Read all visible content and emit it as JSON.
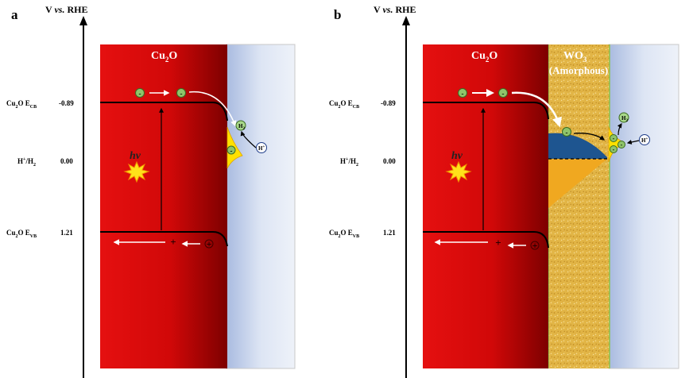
{
  "panels": [
    {
      "letter": "a",
      "axis_title": {
        "v": "V",
        "vs": "vs.",
        "ref": "RHE"
      },
      "levels": [
        {
          "label": "Cu",
          "sub": "2",
          "rest": "O  E",
          "sub2": "CB",
          "value": "-0.89"
        },
        {
          "label": "H",
          "sup": "+",
          "rest": "/H",
          "sub2": "2",
          "value": "0.00"
        },
        {
          "label": "Cu",
          "sub": "2",
          "rest": "O  E",
          "sub2": "VB",
          "value": "1.21"
        }
      ],
      "block_label": {
        "main": "Cu",
        "sub": "2",
        "rest": "O"
      },
      "hv": "hv",
      "electron": "-",
      "hole": "+",
      "proton": {
        "main": "H",
        "sup": "+"
      },
      "hydrogen": {
        "main": "H",
        "sub": "2"
      }
    },
    {
      "letter": "b",
      "axis_title": {
        "v": "V",
        "vs": "vs.",
        "ref": "RHE"
      },
      "levels": [
        {
          "label": "Cu",
          "sub": "2",
          "rest": "O  E",
          "sub2": "CB",
          "value": "-0.89"
        },
        {
          "label": "H",
          "sup": "+",
          "rest": "/H",
          "sub2": "2",
          "value": "0.00"
        },
        {
          "label": "Cu",
          "sub": "2",
          "rest": "O  E",
          "sub2": "VB",
          "value": "1.21"
        }
      ],
      "block_label": {
        "main": "Cu",
        "sub": "2",
        "rest": "O"
      },
      "wo3_label": {
        "main": "WO",
        "sub": "3",
        "note": "(Amorphous)"
      },
      "hv": "hv",
      "electron": "-",
      "hole": "+",
      "proton": {
        "main": "H",
        "sup": "+"
      },
      "hydrogen": {
        "main": "H",
        "sub": "2"
      }
    }
  ],
  "colors": {
    "cu2o_dark": "#a80000",
    "cu2o_bright": "#e81515",
    "electrolyte": "#b8c8e6",
    "wo3": "#e0b040",
    "depletion": "#1e5590",
    "electron_fill": "#8fc46a",
    "charge_yellow": "#ffe000"
  }
}
